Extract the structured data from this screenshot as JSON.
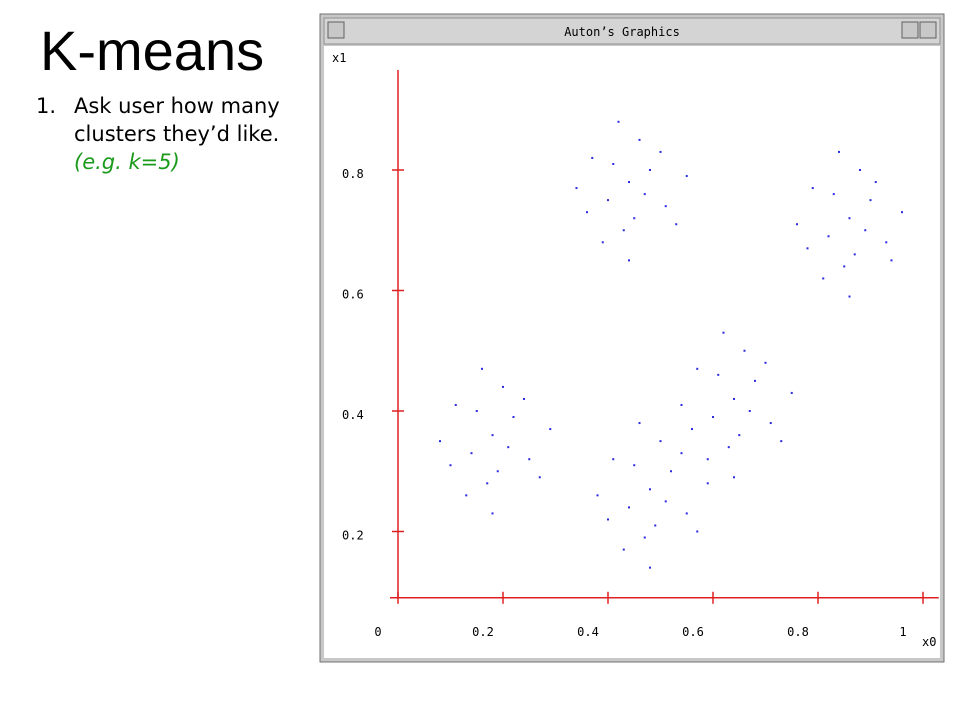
{
  "slide": {
    "title": "K-means",
    "list": [
      {
        "number": "1.",
        "lines": [
          "Ask user how many",
          "clusters they’d like."
        ],
        "example": "(e.g. k=5)"
      }
    ]
  },
  "window": {
    "title": "Auton’s Graphics"
  },
  "chart_data": {
    "type": "scatter",
    "x_label": "x0",
    "y_label": "x1",
    "xlim": [
      0,
      1.03
    ],
    "ylim": [
      0.09,
      0.966
    ],
    "xticks": [
      0,
      0.2,
      0.4,
      0.6,
      0.8,
      1
    ],
    "yticks": [
      0.2,
      0.4,
      0.6,
      0.8
    ],
    "series": [
      {
        "color": "#2a2ae0",
        "x": [
          0.44,
          0.4,
          0.48,
          0.37,
          0.51,
          0.43,
          0.46,
          0.34,
          0.55,
          0.42,
          0.45,
          0.39,
          0.5,
          0.47,
          0.36,
          0.53,
          0.41,
          0.44,
          0.86,
          0.82,
          0.9,
          0.79,
          0.93,
          0.85,
          0.88,
          0.76,
          0.96,
          0.84,
          0.87,
          0.81,
          0.91,
          0.89,
          0.78,
          0.94,
          0.83,
          0.86,
          0.18,
          0.14,
          0.22,
          0.11,
          0.25,
          0.17,
          0.2,
          0.08,
          0.29,
          0.16,
          0.19,
          0.13,
          0.24,
          0.21,
          0.1,
          0.27,
          0.15,
          0.18,
          0.64,
          0.6,
          0.68,
          0.57,
          0.71,
          0.63,
          0.66,
          0.54,
          0.75,
          0.62,
          0.65,
          0.59,
          0.7,
          0.67,
          0.56,
          0.73,
          0.61,
          0.64,
          0.48,
          0.44,
          0.52,
          0.41,
          0.55,
          0.47,
          0.5,
          0.38,
          0.59,
          0.46,
          0.49,
          0.43,
          0.54,
          0.51,
          0.4,
          0.57,
          0.45,
          0.48
        ],
        "y": [
          0.78,
          0.75,
          0.8,
          0.82,
          0.74,
          0.7,
          0.85,
          0.77,
          0.79,
          0.88,
          0.72,
          0.68,
          0.83,
          0.76,
          0.73,
          0.71,
          0.81,
          0.65,
          0.72,
          0.69,
          0.75,
          0.77,
          0.68,
          0.64,
          0.8,
          0.71,
          0.73,
          0.83,
          0.66,
          0.62,
          0.78,
          0.7,
          0.67,
          0.65,
          0.76,
          0.59,
          0.36,
          0.33,
          0.39,
          0.41,
          0.32,
          0.28,
          0.44,
          0.35,
          0.37,
          0.47,
          0.3,
          0.26,
          0.42,
          0.34,
          0.31,
          0.29,
          0.4,
          0.23,
          0.42,
          0.39,
          0.45,
          0.47,
          0.38,
          0.34,
          0.5,
          0.41,
          0.43,
          0.53,
          0.36,
          0.32,
          0.48,
          0.4,
          0.37,
          0.35,
          0.46,
          0.29,
          0.27,
          0.24,
          0.3,
          0.32,
          0.23,
          0.19,
          0.35,
          0.26,
          0.28,
          0.38,
          0.21,
          0.17,
          0.33,
          0.25,
          0.22,
          0.2,
          0.31,
          0.14
        ]
      }
    ]
  }
}
